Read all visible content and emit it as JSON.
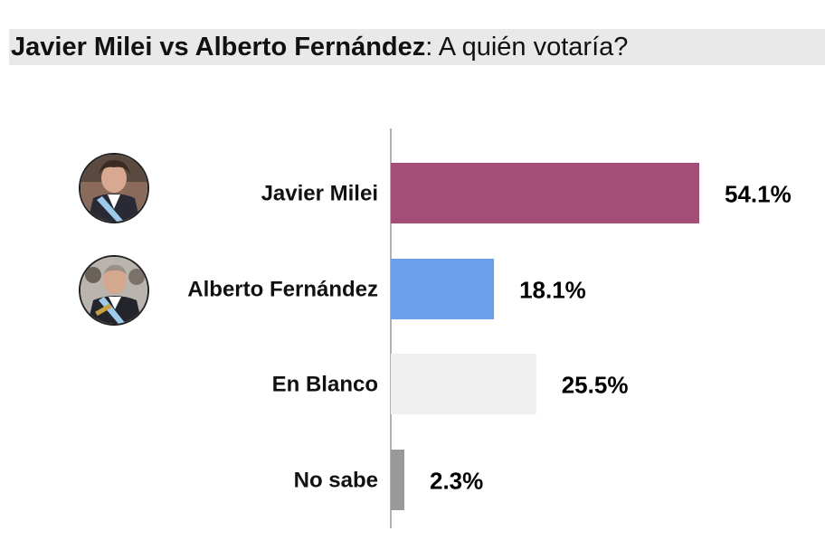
{
  "header": {
    "title_bold": "Javier Milei vs Alberto Fernández",
    "title_rest": ": A quién votaría?"
  },
  "avatars": [
    {
      "name": "javier-milei-avatar"
    },
    {
      "name": "alberto-fernandez-avatar"
    }
  ],
  "chart_data": {
    "type": "bar",
    "orientation": "horizontal",
    "title": "Javier Milei vs Alberto Fernández: A quién votaría?",
    "categories": [
      "Javier Milei",
      "Alberto Fernández",
      "En Blanco",
      "No sabe"
    ],
    "values": [
      54.1,
      18.1,
      25.5,
      2.3
    ],
    "value_labels": [
      "54.1%",
      "18.1%",
      "25.5%",
      "2.3%"
    ],
    "colors": [
      "#a44d76",
      "#6d9eeb",
      "#efefef",
      "#999999"
    ],
    "xlabel": "",
    "ylabel": "",
    "xlim": [
      0,
      60
    ],
    "grid": false,
    "legend": "none"
  }
}
